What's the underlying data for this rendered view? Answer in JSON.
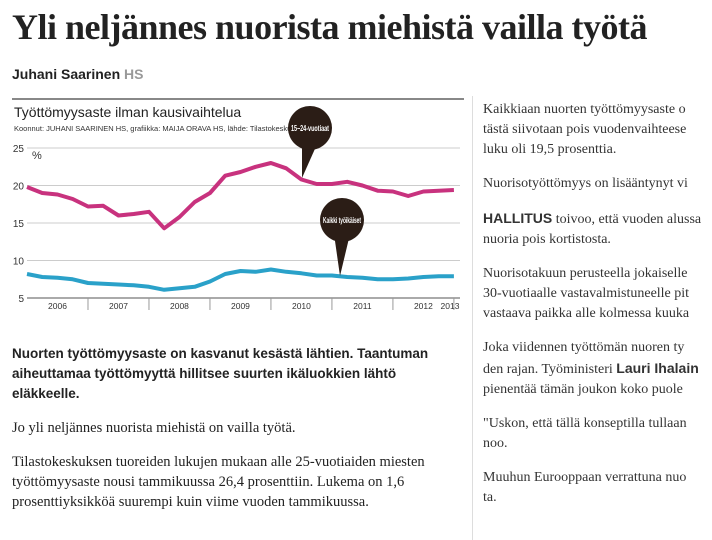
{
  "header": {
    "title": "Yli neljännes nuorista miehistä vailla työtä",
    "author": "Juhani Saarinen",
    "source": "HS"
  },
  "chart_data": {
    "type": "line",
    "title": "Työttömyysaste ilman kausivaihtelua",
    "subtitle": "Koonnut: JUHANI SAARINEN HS, grafiikka: MAIJA ORAVA HS, lähde: Tilastokeskus",
    "y_unit": "%",
    "year_labels": [
      "2006",
      "2007",
      "2008",
      "2009",
      "2010",
      "2011",
      "2012",
      "2013"
    ],
    "x": [
      2006,
      2006.25,
      2006.5,
      2006.75,
      2007,
      2007.25,
      2007.5,
      2007.75,
      2008,
      2008.25,
      2008.5,
      2008.75,
      2009,
      2009.25,
      2009.5,
      2009.75,
      2010,
      2010.25,
      2010.5,
      2010.75,
      2011,
      2011.25,
      2011.5,
      2011.75,
      2012,
      2012.25,
      2012.5,
      2012.75,
      2013
    ],
    "xlim": [
      2006,
      2013.1
    ],
    "ylim": [
      5,
      25
    ],
    "yticks": [
      5,
      10,
      15,
      20,
      25
    ],
    "series": [
      {
        "name": "15–24-vuotiaat",
        "color": "#c8327e",
        "values": [
          19.8,
          19.0,
          18.8,
          18.2,
          17.2,
          17.3,
          16.0,
          16.2,
          16.5,
          14.3,
          15.8,
          17.8,
          19.0,
          21.3,
          21.8,
          22.5,
          23.0,
          22.3,
          20.8,
          20.2,
          20.2,
          20.5,
          20.0,
          19.3,
          19.2,
          18.6,
          19.2,
          19.3,
          19.4
        ]
      },
      {
        "name": "Kaikki työikäiset",
        "color": "#2aa1c9",
        "values": [
          8.2,
          7.8,
          7.7,
          7.5,
          7.0,
          6.9,
          6.8,
          6.7,
          6.5,
          6.1,
          6.3,
          6.5,
          7.2,
          8.2,
          8.6,
          8.5,
          8.8,
          8.5,
          8.3,
          8.0,
          8.0,
          7.8,
          7.7,
          7.5,
          7.5,
          7.6,
          7.8,
          7.9,
          7.9
        ]
      }
    ]
  },
  "left_column": {
    "lead": [
      "Nuorten työttömyysaste on kasvanut kesästä lähtien. Taantuman",
      "aiheuttamaa työttömyyttä hillitsee suurten ikäluokkien lähtö",
      "eläkkeelle."
    ],
    "paragraphs": [
      [
        "Jo yli neljännes nuorista miehistä on vailla työtä."
      ],
      [
        "Tilastokeskuksen tuoreiden lukujen mukaan alle 25-vuotiaiden miesten",
        "työttömyysaste nousi tammikuussa 26,4 prosenttiin. Lukema on 1,6",
        "prosenttiyksikköä suurempi kuin viime vuoden tammikuussa."
      ]
    ]
  },
  "right_column": {
    "p1": [
      "Kaikkiaan nuorten työttömyysaste o",
      "tästä siivotaan pois vuodenvaihteese",
      "luku oli 19,5 prosenttia."
    ],
    "p2": [
      "Nuorisotyöttömyys on lisääntynyt vi"
    ],
    "p3": {
      "lead": "HALLITUS",
      "lines": [
        " toivoo, että vuoden alussa",
        "nuoria pois kortistosta."
      ]
    },
    "p4": [
      "Nuorisotakuun perusteella jokaiselle",
      "30-vuotiaalle vastavalmistuneelle pit",
      "vastaava paikka alle kolmessa kuuka"
    ],
    "p5": {
      "line1": "Joka viidennen työttömän nuoren ty",
      "line2": "den rajan. Työministeri ",
      "name": "Lauri Ihalain",
      "line3": "pienentää tämän joukon koko puole"
    },
    "p6": [
      "\"Uskon, että tällä konseptilla tullaan",
      "noo."
    ],
    "p7": [
      "Muuhun Eurooppaan verrattuna nuo",
      "ta."
    ]
  }
}
